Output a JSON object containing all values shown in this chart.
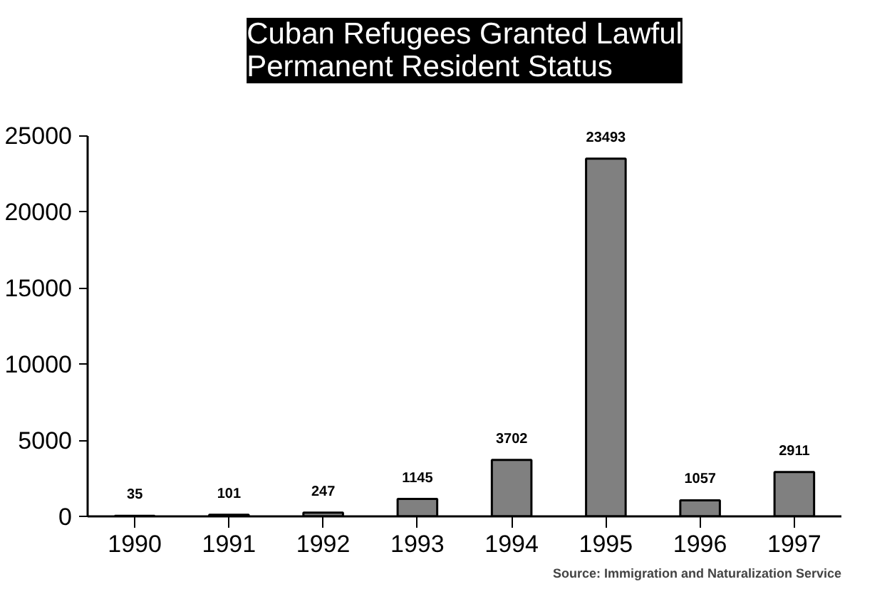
{
  "chart_data": {
    "type": "bar",
    "title": "Cuban Refugees Granted Lawful\nPermanent Resident Status",
    "categories": [
      "1990",
      "1991",
      "1992",
      "1993",
      "1994",
      "1995",
      "1996",
      "1997"
    ],
    "values": [
      35,
      101,
      247,
      1145,
      3702,
      23493,
      1057,
      2911
    ],
    "color": "#808080",
    "ylim": [
      0,
      25000
    ],
    "yticks": [
      0,
      5000,
      10000,
      15000,
      20000,
      25000
    ],
    "grid": false,
    "data_labels": true,
    "annotations": [
      "Source: Immigration and Naturalization Service"
    ]
  }
}
